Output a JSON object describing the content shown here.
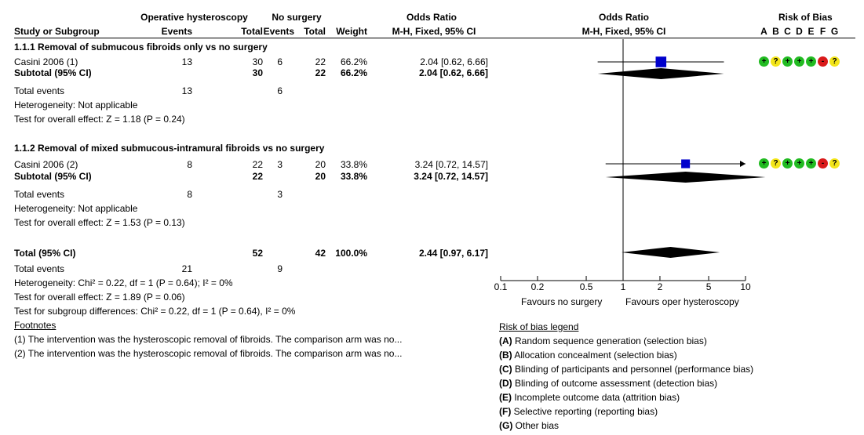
{
  "header": {
    "group1": "Operative hysteroscopy",
    "group2": "No surgery",
    "or_title": "Odds Ratio",
    "or_plot_title": "Odds Ratio",
    "rob_title": "Risk of Bias",
    "study_col": "Study or Subgroup",
    "events1": "Events",
    "total1": "Total",
    "events2": "Events",
    "total2": "Total",
    "weight": "Weight",
    "method": "M-H, Fixed, 95% CI",
    "method_plot": "M-H, Fixed, 95% CI",
    "rob_letters": [
      "A",
      "B",
      "C",
      "D",
      "E",
      "F",
      "G"
    ]
  },
  "subgroups": [
    {
      "title": "1.1.1 Removal of submucous fibroids only vs no surgery",
      "study": {
        "name": "Casini 2006 (1)",
        "e1": "13",
        "t1": "30",
        "e2": "6",
        "t2": "22",
        "weight": "66.2%",
        "or": "2.04 [0.62, 6.66]"
      },
      "subtotal": {
        "label": "Subtotal (95% CI)",
        "t1": "30",
        "t2": "22",
        "weight": "66.2%",
        "or": "2.04 [0.62, 6.66]"
      },
      "total_events": {
        "label": "Total events",
        "e1": "13",
        "e2": "6"
      },
      "heterogeneity": "Heterogeneity: Not applicable",
      "overall": "Test for overall effect: Z = 1.18 (P = 0.24)"
    },
    {
      "title": "1.1.2 Removal of mixed submucous-intramural fibroids vs no surgery",
      "study": {
        "name": "Casini 2006 (2)",
        "e1": "8",
        "t1": "22",
        "e2": "3",
        "t2": "20",
        "weight": "33.8%",
        "or": "3.24 [0.72, 14.57]"
      },
      "subtotal": {
        "label": "Subtotal (95% CI)",
        "t1": "22",
        "t2": "20",
        "weight": "33.8%",
        "or": "3.24 [0.72, 14.57]"
      },
      "total_events": {
        "label": "Total events",
        "e1": "8",
        "e2": "3"
      },
      "heterogeneity": "Heterogeneity: Not applicable",
      "overall": "Test for overall effect: Z = 1.53 (P = 0.13)"
    }
  ],
  "total": {
    "label": "Total (95% CI)",
    "t1": "52",
    "t2": "42",
    "weight": "100.0%",
    "or": "2.44 [0.97, 6.17]",
    "events_label": "Total events",
    "e1": "21",
    "e2": "9",
    "heterogeneity": "Heterogeneity: Chi² = 0.22, df = 1 (P = 0.64); I² = 0%",
    "overall": "Test for overall effect: Z = 1.89 (P = 0.06)",
    "subgroup_diff": "Test for subgroup differences: Chi² = 0.22, df = 1 (P = 0.64), I² = 0%"
  },
  "footnotes": {
    "title": "Footnotes",
    "items": [
      "(1) The intervention was the hysteroscopic removal of fibroids. The comparison arm was no...",
      "(2) The intervention was the hysteroscopic removal of fibroids. The comparison arm was no..."
    ]
  },
  "axis": {
    "favours_left": "Favours no surgery",
    "favours_right": "Favours oper hysteroscopy"
  },
  "rob_legend": {
    "title": "Risk of bias legend",
    "items": [
      {
        "letter": "(A)",
        "text": " Random sequence generation (selection bias)"
      },
      {
        "letter": "(B)",
        "text": " Allocation concealment (selection bias)"
      },
      {
        "letter": "(C)",
        "text": " Blinding of participants and personnel (performance bias)"
      },
      {
        "letter": "(D)",
        "text": " Blinding of outcome assessment (detection bias)"
      },
      {
        "letter": "(E)",
        "text": " Incomplete outcome data (attrition bias)"
      },
      {
        "letter": "(F)",
        "text": " Selective reporting (reporting bias)"
      },
      {
        "letter": "(G)",
        "text": " Other bias"
      }
    ]
  },
  "rob_rows": [
    [
      {
        "sym": "+",
        "level": "low"
      },
      {
        "sym": "?",
        "level": "unc"
      },
      {
        "sym": "+",
        "level": "low"
      },
      {
        "sym": "+",
        "level": "low"
      },
      {
        "sym": "+",
        "level": "low"
      },
      {
        "sym": "-",
        "level": "high"
      },
      {
        "sym": "?",
        "level": "unc"
      }
    ],
    [
      {
        "sym": "+",
        "level": "low"
      },
      {
        "sym": "?",
        "level": "unc"
      },
      {
        "sym": "+",
        "level": "low"
      },
      {
        "sym": "+",
        "level": "low"
      },
      {
        "sym": "+",
        "level": "low"
      },
      {
        "sym": "-",
        "level": "high"
      },
      {
        "sym": "?",
        "level": "unc"
      }
    ]
  ],
  "colors": {
    "study_marker": "#0000cc",
    "diamond": "#000000"
  },
  "chart_data": {
    "type": "forest",
    "x_scale": "log",
    "xlim": [
      0.1,
      10
    ],
    "null_value": 1,
    "ticks": [
      "0.1",
      "0.2",
      "0.5",
      "1",
      "2",
      "5",
      "10"
    ],
    "rows": [
      {
        "kind": "study",
        "label": "Casini 2006 (1)",
        "or": 2.04,
        "lo": 0.62,
        "hi": 6.66,
        "weight": 66.2
      },
      {
        "kind": "diamond",
        "label": "Subtotal (95% CI)",
        "or": 2.04,
        "lo": 0.62,
        "hi": 6.66
      },
      {
        "kind": "study",
        "label": "Casini 2006 (2)",
        "or": 3.24,
        "lo": 0.72,
        "hi": 14.57,
        "weight": 33.8
      },
      {
        "kind": "diamond",
        "label": "Subtotal (95% CI)",
        "or": 3.24,
        "lo": 0.72,
        "hi": 14.57
      },
      {
        "kind": "diamond",
        "label": "Total (95% CI)",
        "or": 2.44,
        "lo": 0.97,
        "hi": 6.17
      }
    ]
  }
}
